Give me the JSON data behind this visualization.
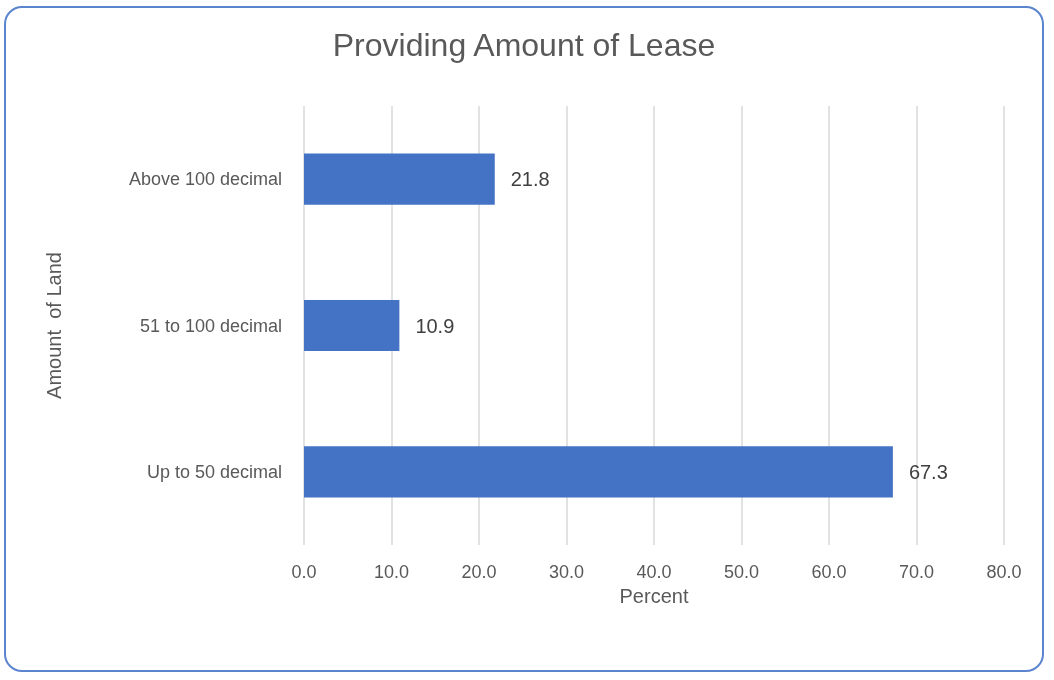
{
  "chart_data": {
    "type": "bar",
    "orientation": "horizontal",
    "title": "Providing Amount of Lease",
    "xlabel": "Percent",
    "ylabel": "Amount  of Land",
    "categories": [
      "Above 100 decimal",
      "51 to 100 decimal",
      "Up to 50 decimal"
    ],
    "values": [
      21.8,
      10.9,
      67.3
    ],
    "color": "#4472c4",
    "data_labels": true,
    "xlim": [
      0,
      80
    ],
    "xticks": [
      {
        "value": 0,
        "label": "0.0"
      },
      {
        "value": 10,
        "label": "10.0"
      },
      {
        "value": 20,
        "label": "20.0"
      },
      {
        "value": 30,
        "label": "30.0"
      },
      {
        "value": 40,
        "label": "40.0"
      },
      {
        "value": 50,
        "label": "50.0"
      },
      {
        "value": 60,
        "label": "60.0"
      },
      {
        "value": 70,
        "label": "70.0"
      },
      {
        "value": 80,
        "label": "80.0"
      }
    ],
    "grid": "x"
  }
}
